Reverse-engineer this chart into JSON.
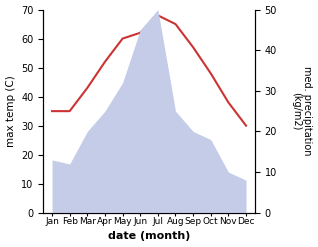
{
  "months": [
    "Jan",
    "Feb",
    "Mar",
    "Apr",
    "May",
    "Jun",
    "Jul",
    "Aug",
    "Sep",
    "Oct",
    "Nov",
    "Dec"
  ],
  "temperature": [
    35,
    35,
    43,
    52,
    60,
    62,
    68,
    65,
    57,
    48,
    38,
    30
  ],
  "precipitation": [
    13,
    12,
    20,
    25,
    32,
    45,
    50,
    25,
    20,
    18,
    10,
    8
  ],
  "temp_color": "#cc3333",
  "precip_color": "#c5cce8",
  "ylabel_left": "max temp (C)",
  "ylabel_right": "med. precipitation\n(kg/m2)",
  "xlabel": "date (month)",
  "ylim_left": [
    0,
    70
  ],
  "ylim_right": [
    0,
    50
  ],
  "yticks_left": [
    0,
    10,
    20,
    30,
    40,
    50,
    60,
    70
  ],
  "yticks_right": [
    0,
    10,
    20,
    30,
    40,
    50
  ],
  "bg_color": "#ffffff"
}
